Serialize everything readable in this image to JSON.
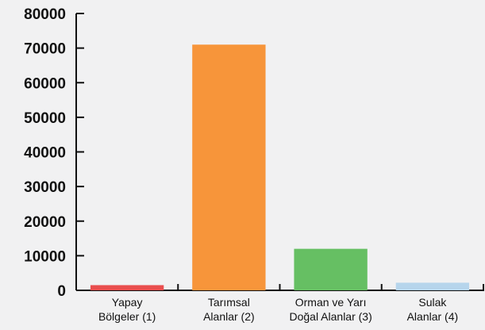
{
  "chart_data": {
    "type": "bar",
    "title": "",
    "xlabel": "",
    "ylabel": "",
    "ylim": [
      0,
      80000
    ],
    "yticks": [
      "0",
      "10000",
      "20000",
      "30000",
      "40000",
      "50000",
      "60000",
      "70000",
      "80000"
    ],
    "categories": [
      [
        "Yapay",
        "Bölgeler (1)"
      ],
      [
        "Tarımsal",
        "Alanlar (2)"
      ],
      [
        "Orman ve Yarı",
        "Doğal Alanlar (3)"
      ],
      [
        "Sulak",
        "Alanlar (4)"
      ]
    ],
    "values": [
      1500,
      71000,
      12000,
      2200
    ],
    "colors": [
      "#e94e4e",
      "#f7953a",
      "#66bf63",
      "#b6d5ec"
    ],
    "grid": false,
    "legend": "none"
  }
}
